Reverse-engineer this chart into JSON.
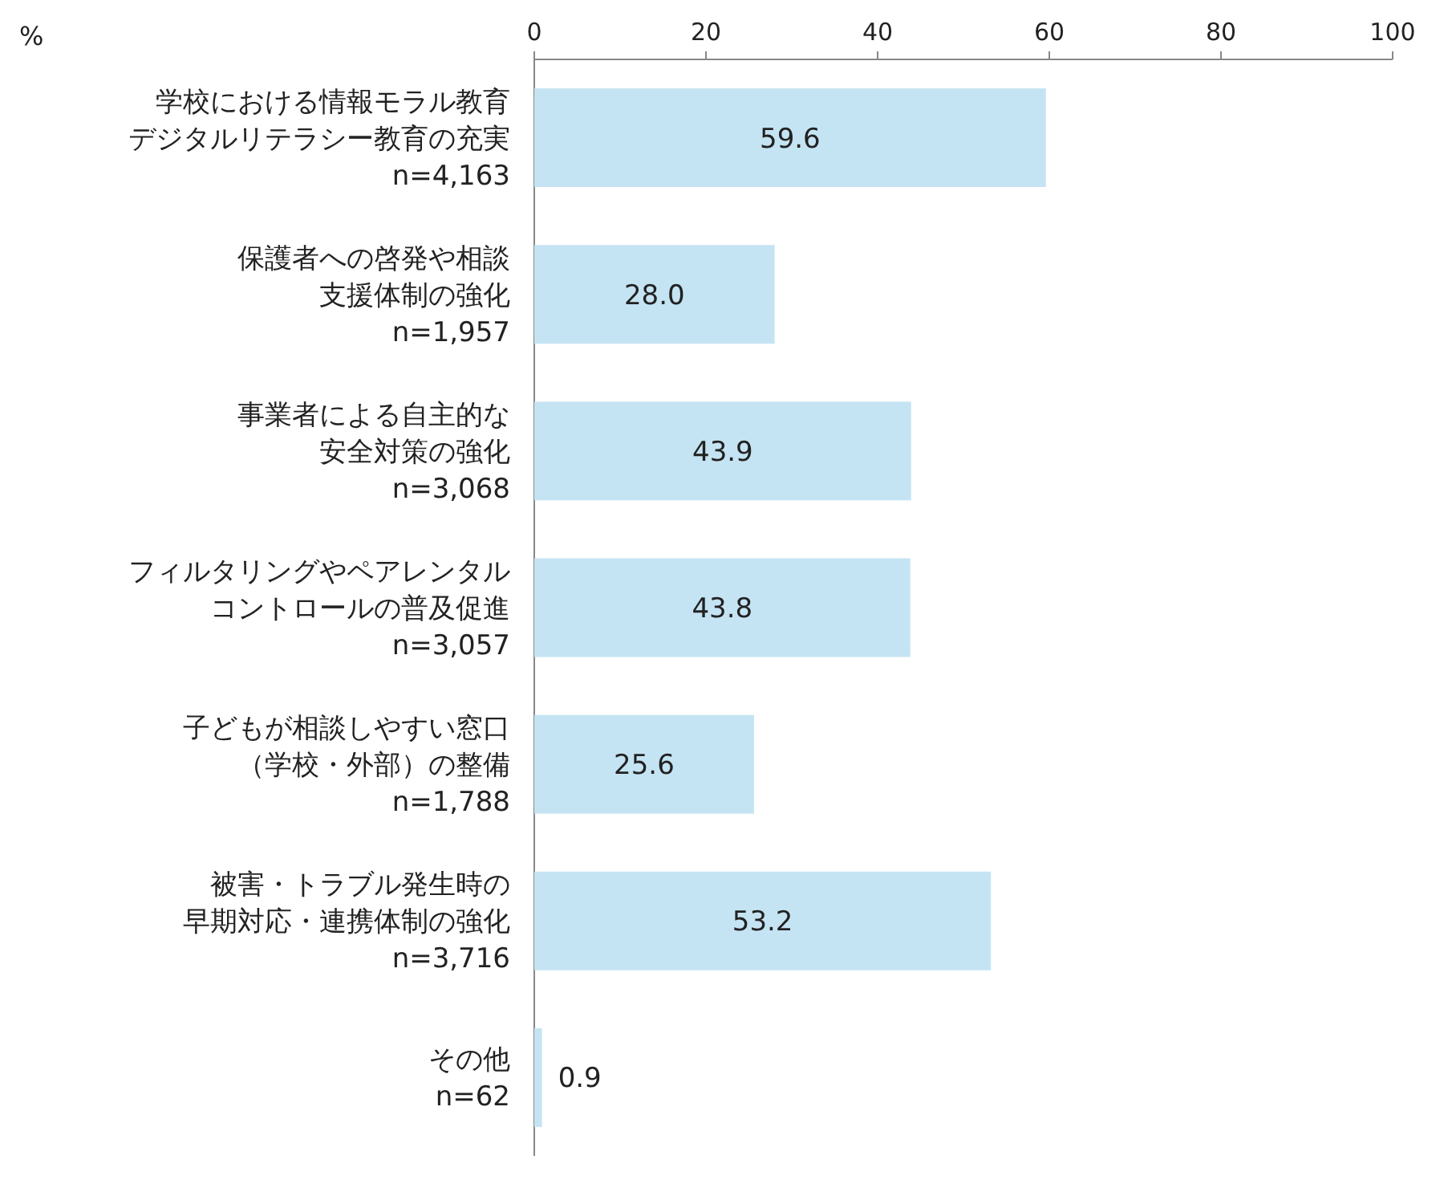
{
  "chart_data": {
    "type": "bar",
    "orientation": "horizontal",
    "xlabel": "%",
    "categories": [
      "学校における情報モラル教育デジタルリテラシー教育の充実\nn=4,163",
      "保護者への啓発や相談支援体制の強化\nn=1,957",
      "事業者による自主的な安全対策の強化\nn=3,068",
      "フィルタリングやペアレンタルコントロールの普及促進\nn=3,057",
      "子どもが相談しやすい窓口（学校・外部）の整備\nn=1,788",
      "被害・トラブル発生時の早期対応・連携体制の強化\nn=3,716",
      "その他\nn=62"
    ],
    "values": [
      59.6,
      28.0,
      43.9,
      43.8,
      25.6,
      53.2,
      0.9
    ],
    "value_labels": [
      "59.6",
      "28.0",
      "43.9",
      "43.8",
      "25.6",
      "53.2",
      "0.9"
    ],
    "color": "#c5e4f3",
    "xlim": [
      0,
      100
    ],
    "xticks": [
      0,
      20,
      40,
      60,
      80,
      100
    ],
    "grid": false
  }
}
